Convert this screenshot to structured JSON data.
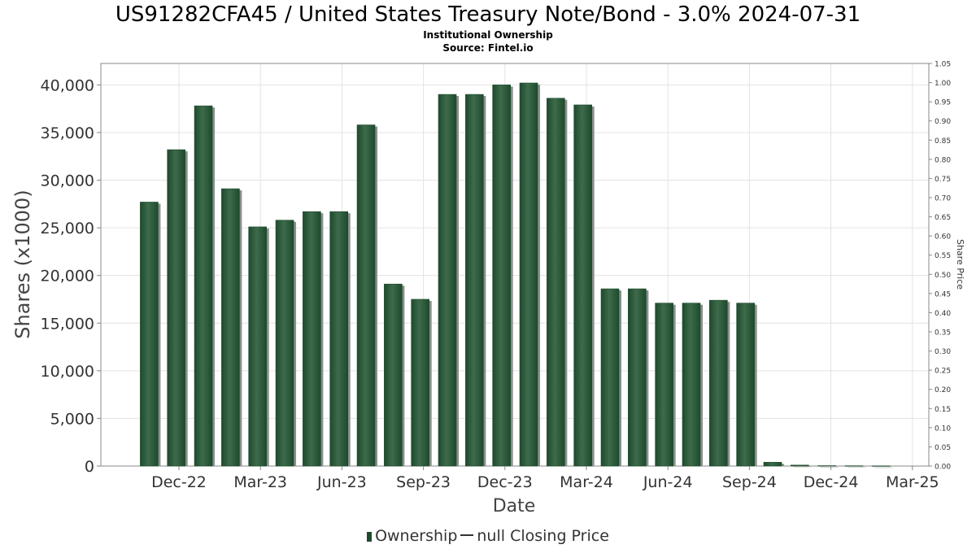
{
  "title": "US91282CFA45 / United States Treasury Note/Bond - 3.0% 2024-07-31",
  "subtitle": "Institutional Ownership",
  "source": "Source: Fintel.io",
  "legend": {
    "ownership_label": "Ownership",
    "price_label": "null Closing Price"
  },
  "colors": {
    "bar": "#1e4a2d",
    "bar_highlight": "#3d6b4a",
    "bar_shadow": "#8a8f8c",
    "grid": "#e3e3e3",
    "axis_text": "#333333"
  },
  "chart_data": {
    "type": "bar",
    "xlabel": "Date",
    "ylabel": "Shares (x1000)",
    "y2label": "Share Price",
    "ylim": [
      0,
      42250
    ],
    "y2lim": [
      0,
      1.05
    ],
    "yticks": [
      0,
      5000,
      10000,
      15000,
      20000,
      25000,
      30000,
      35000,
      40000
    ],
    "ytick_labels": [
      "0",
      "5,000",
      "10,000",
      "15,000",
      "20,000",
      "25,000",
      "30,000",
      "35,000",
      "40,000"
    ],
    "y2ticks": [
      "0.00",
      "0.05",
      "0.10",
      "0.15",
      "0.20",
      "0.25",
      "0.30",
      "0.35",
      "0.40",
      "0.45",
      "0.50",
      "0.55",
      "0.60",
      "0.65",
      "0.70",
      "0.75",
      "0.80",
      "0.85",
      "0.90",
      "0.95",
      "1.00",
      "1.05"
    ],
    "xticks": [
      "Dec-22",
      "Mar-23",
      "Jun-23",
      "Sep-23",
      "Dec-23",
      "Mar-24",
      "Jun-24",
      "Sep-24",
      "Dec-24",
      "Mar-25"
    ],
    "grid": true,
    "legend_position": "bottom",
    "values": [
      27700,
      33200,
      37800,
      29100,
      25100,
      25800,
      26700,
      26700,
      35800,
      19100,
      17500,
      39000,
      39000,
      40000,
      40200,
      38600,
      37900,
      18600,
      18600,
      17100,
      17100,
      17400,
      17100,
      400,
      100,
      40,
      30,
      20
    ]
  }
}
